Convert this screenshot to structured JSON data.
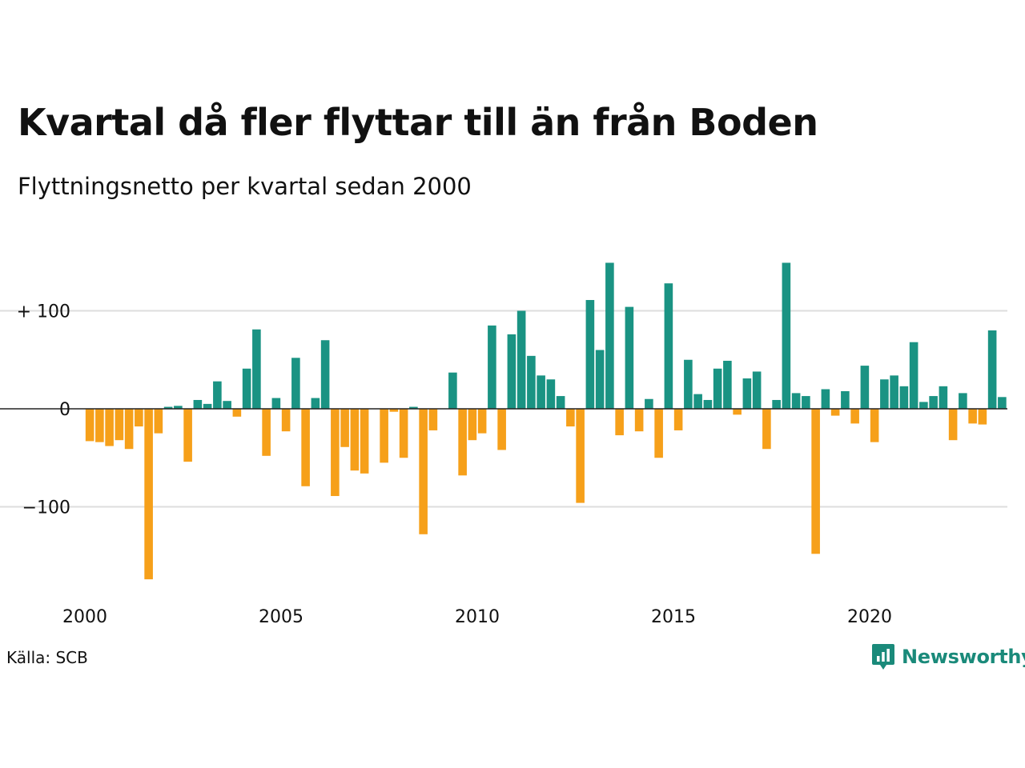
{
  "title": "Kvartal då fler flyttar till än från Boden",
  "subtitle": "Flyttningsnetto per kvartal sedan 2000",
  "source": "Källa: SCB",
  "brand": {
    "name": "Newsworthy",
    "icon": "newsworthy-chart-logo-icon"
  },
  "colors": {
    "positive": "#1a9383",
    "negative": "#f6a01a",
    "grid": "#dddddd",
    "zero_line": "#222222",
    "brand": "#1a8a7a"
  },
  "chart_data": {
    "type": "bar",
    "title": "Kvartal då fler flyttar till än från Boden",
    "subtitle": "Flyttningsnetto per kvartal sedan 2000",
    "xlabel": "",
    "ylabel": "",
    "x_start": "2000 Q1",
    "frequency": "quarterly",
    "x_tick_labels": [
      "2000",
      "2005",
      "2010",
      "2015",
      "2020"
    ],
    "y_tick_labels": [
      "+ 100",
      "0",
      "−100"
    ],
    "y_ticks": [
      100,
      0,
      -100
    ],
    "ylim": [
      -175,
      150
    ],
    "grid": true,
    "legend": "none",
    "values": [
      -33,
      -34,
      -38,
      -32,
      -41,
      -18,
      -174,
      -25,
      2,
      3,
      -54,
      9,
      5,
      28,
      8,
      -8,
      41,
      81,
      -48,
      11,
      -23,
      52,
      -79,
      11,
      70,
      -89,
      -39,
      -63,
      -66,
      0,
      -55,
      -3,
      -50,
      2,
      -128,
      -22,
      0,
      37,
      -68,
      -32,
      -25,
      85,
      -42,
      76,
      100,
      54,
      34,
      30,
      13,
      -18,
      -96,
      111,
      60,
      149,
      -27,
      104,
      -23,
      10,
      -50,
      128,
      -22,
      50,
      15,
      9,
      41,
      49,
      -6,
      31,
      38,
      -41,
      9,
      149,
      16,
      13,
      -148,
      20,
      -7,
      18,
      -15,
      44,
      -34,
      30,
      34,
      23,
      68,
      7,
      13,
      23,
      -32,
      16,
      -15,
      -16,
      80,
      12
    ]
  }
}
